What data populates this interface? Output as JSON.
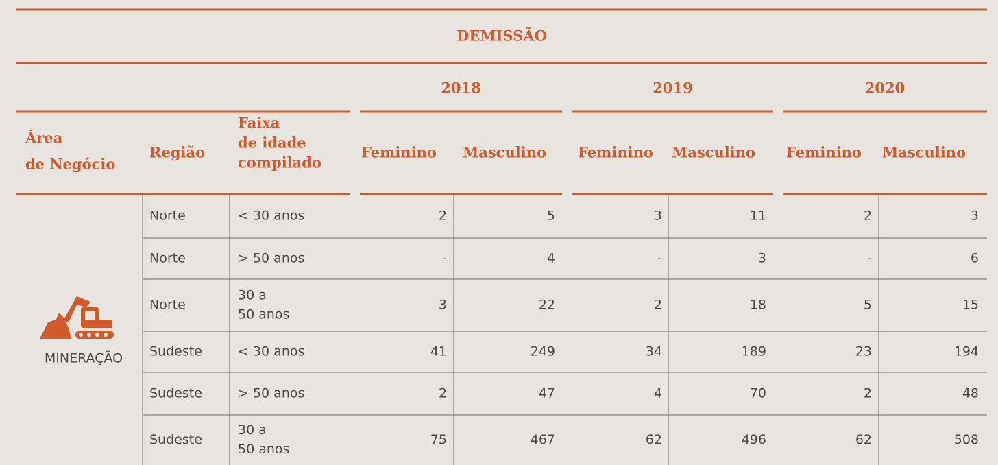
{
  "table": {
    "title": "DEMISSÃO",
    "header": {
      "area": [
        "Área",
        "de Negócio"
      ],
      "region": "Região",
      "age": [
        "Faixa",
        "de idade",
        "compilado"
      ]
    },
    "groups": [
      {
        "year": "2018",
        "columns": [
          "Feminino",
          "Masculino"
        ]
      },
      {
        "year": "2019",
        "columns": [
          "Feminino",
          "Masculino"
        ]
      },
      {
        "year": "2020",
        "columns": [
          "Feminino",
          "Masculino"
        ]
      }
    ],
    "area": "MINERAÇÃO",
    "rows": [
      {
        "region": "Norte",
        "age": [
          "< 30 anos"
        ],
        "values": [
          2,
          5,
          3,
          11,
          2,
          3
        ]
      },
      {
        "region": "Norte",
        "age": [
          "> 50 anos"
        ],
        "values": [
          "-",
          4,
          "-",
          3,
          "-",
          6
        ]
      },
      {
        "region": "Norte",
        "age": [
          "30 a",
          "50 anos"
        ],
        "values": [
          3,
          22,
          2,
          18,
          5,
          15
        ]
      },
      {
        "region": "Sudeste",
        "age": [
          "< 30 anos"
        ],
        "values": [
          41,
          249,
          34,
          189,
          23,
          194
        ]
      },
      {
        "region": "Sudeste",
        "age": [
          "> 50 anos"
        ],
        "values": [
          2,
          47,
          4,
          70,
          2,
          48
        ]
      },
      {
        "region": "Sudeste",
        "age": [
          "30 a",
          "50 anos"
        ],
        "values": [
          75,
          467,
          62,
          496,
          62,
          508
        ]
      }
    ]
  }
}
